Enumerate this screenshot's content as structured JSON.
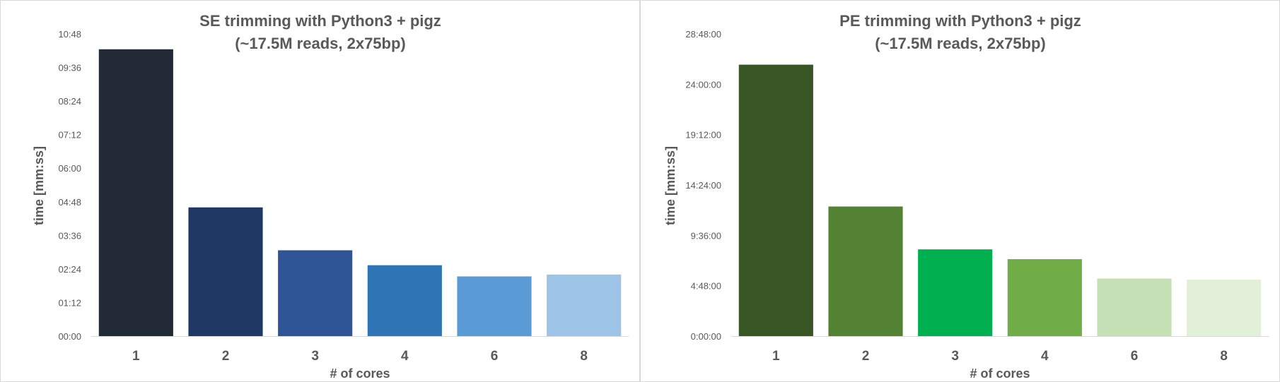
{
  "chart_data": [
    {
      "type": "bar",
      "title": [
        "SE trimming with Python3 + pigz",
        "(~17.5M reads, 2x75bp)"
      ],
      "xlabel": "# of cores",
      "ylabel": "time [mm:ss]",
      "categories": [
        "1",
        "2",
        "3",
        "4",
        "6",
        "8"
      ],
      "values": [
        "10:15",
        "04:36",
        "03:04",
        "02:32",
        "02:08",
        "02:12"
      ],
      "yticks": [
        "00:00",
        "01:12",
        "02:24",
        "03:36",
        "04:48",
        "06:00",
        "07:12",
        "08:24",
        "09:36",
        "10:48"
      ],
      "ylim": [
        "00:00",
        "10:48"
      ],
      "grid": false,
      "colors": [
        "#222a35",
        "#203864",
        "#2f5597",
        "#2e75b6",
        "#5b9bd5",
        "#9dc3e6"
      ]
    },
    {
      "type": "bar",
      "title": [
        "PE trimming with Python3 + pigz",
        "(~17.5M reads, 2x75bp)"
      ],
      "xlabel": "# of cores",
      "ylabel": "time [mm:ss]",
      "categories": [
        "1",
        "2",
        "3",
        "4",
        "6",
        "8"
      ],
      "values": [
        "25:52:00",
        "12:21:00",
        "8:16:00",
        "7:20:00",
        "5:29:00",
        "5:23:00"
      ],
      "yticks": [
        "0:00:00",
        "4:48:00",
        "9:36:00",
        "14:24:00",
        "19:12:00",
        "24:00:00",
        "28:48:00"
      ],
      "ylim": [
        "0:00:00",
        "28:48:00"
      ],
      "grid": false,
      "colors": [
        "#375623",
        "#548235",
        "#00b050",
        "#70ad47",
        "#c5e0b4",
        "#e2f0d9"
      ]
    }
  ]
}
